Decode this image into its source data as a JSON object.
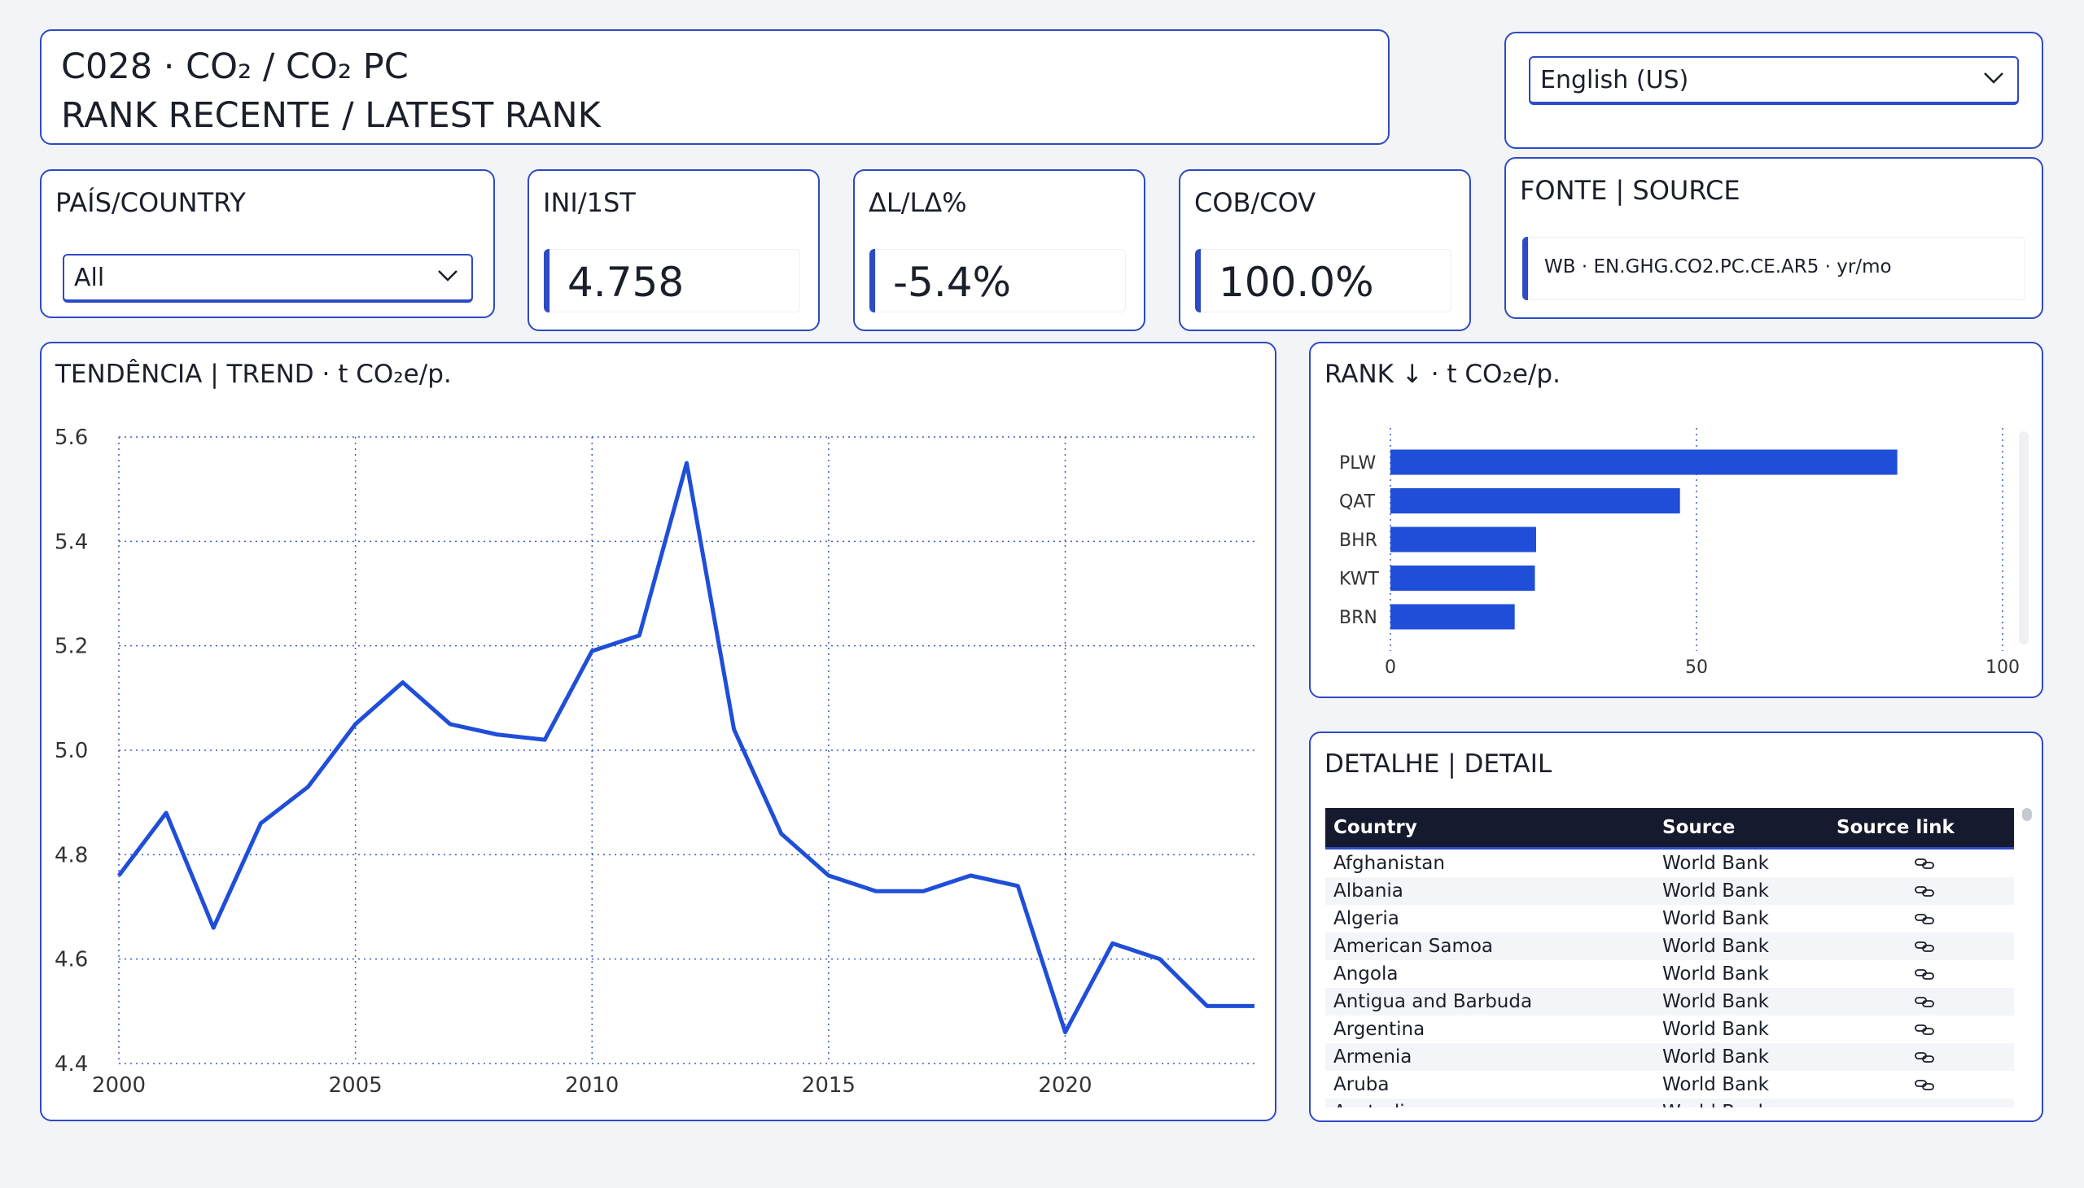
{
  "header": {
    "title_line1": "C028 · CO₂ / CO₂ PC",
    "title_line2": "RANK RECENTE / LATEST RANK"
  },
  "language": {
    "selected": "English (US)"
  },
  "country_filter": {
    "label": "PAÍS/COUNTRY",
    "selected": "All"
  },
  "kpis": {
    "ini": {
      "label": "INI/1ST",
      "value": "4.758"
    },
    "dl": {
      "label": "ΔL/LΔ%",
      "value": "-5.4%"
    },
    "cob": {
      "label": "COB/COV",
      "value": "100.0%"
    }
  },
  "source": {
    "label": "FONTE | SOURCE",
    "text": "WB · EN.GHG.CO2.PC.CE.AR5 · yr/mo"
  },
  "colors": {
    "accent": "#2d4bc4",
    "line": "#1f4ed8",
    "bar": "#1f4ed8",
    "table_header": "#161a2e"
  },
  "chart_data": [
    {
      "type": "line",
      "title": "TENDÊNCIA | TREND · t CO₂e/p.",
      "x": [
        2000,
        2001,
        2002,
        2003,
        2004,
        2005,
        2006,
        2007,
        2008,
        2009,
        2010,
        2011,
        2012,
        2013,
        2014,
        2015,
        2016,
        2017,
        2018,
        2019,
        2020,
        2021,
        2022,
        2023,
        2024
      ],
      "series": [
        {
          "values": [
            4.76,
            4.88,
            4.66,
            4.86,
            4.93,
            5.05,
            5.13,
            5.05,
            5.03,
            5.02,
            5.19,
            5.22,
            5.55,
            5.04,
            4.84,
            4.76,
            4.73,
            4.73,
            4.76,
            4.74,
            4.46,
            4.63,
            4.6,
            4.51,
            4.51
          ]
        }
      ],
      "xticks": [
        2000,
        2005,
        2010,
        2015,
        2020
      ],
      "yticks": [
        "4.4",
        "4.6",
        "4.8",
        "5.0",
        "5.2",
        "5.4",
        "5.6"
      ],
      "xlim": [
        2000,
        2024
      ],
      "ylim": [
        4.4,
        5.6
      ],
      "grid": true
    },
    {
      "type": "bar",
      "orientation": "horizontal",
      "title": "RANK ↓ · t CO₂e/p.",
      "categories": [
        "PLW",
        "QAT",
        "BHR",
        "KWT",
        "BRN"
      ],
      "values": [
        82.8,
        47.3,
        23.8,
        23.6,
        20.3
      ],
      "xticks": [
        "0",
        "50",
        "100"
      ],
      "xlim": [
        0,
        100
      ],
      "grid": true
    }
  ],
  "detail": {
    "title": "DETALHE | DETAIL",
    "columns": [
      "Country",
      "Source",
      "Source link"
    ],
    "rows": [
      {
        "country": "Afghanistan",
        "source": "World Bank",
        "link_icon": "link-icon"
      },
      {
        "country": "Albania",
        "source": "World Bank",
        "link_icon": "link-icon"
      },
      {
        "country": "Algeria",
        "source": "World Bank",
        "link_icon": "link-icon"
      },
      {
        "country": "American Samoa",
        "source": "World Bank",
        "link_icon": "link-icon"
      },
      {
        "country": "Angola",
        "source": "World Bank",
        "link_icon": "link-icon"
      },
      {
        "country": "Antigua and Barbuda",
        "source": "World Bank",
        "link_icon": "link-icon"
      },
      {
        "country": "Argentina",
        "source": "World Bank",
        "link_icon": "link-icon"
      },
      {
        "country": "Armenia",
        "source": "World Bank",
        "link_icon": "link-icon"
      },
      {
        "country": "Aruba",
        "source": "World Bank",
        "link_icon": "link-icon"
      },
      {
        "country": "Australia",
        "source": "World Bank",
        "link_icon": "link-icon"
      }
    ]
  }
}
